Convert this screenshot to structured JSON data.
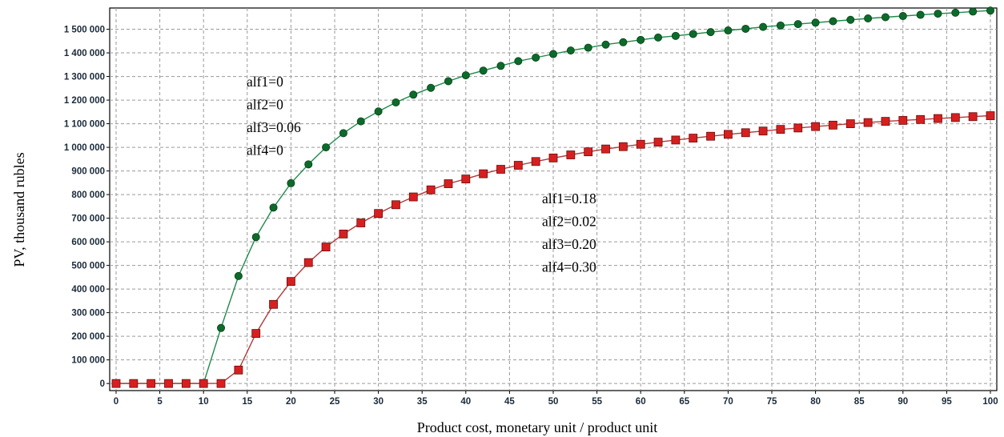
{
  "chart_data": {
    "type": "line",
    "title": "",
    "xlabel": "Product cost, monetary unit / product unit",
    "ylabel": "PV, thousand rubles",
    "xlim": [
      0,
      100
    ],
    "ylim": [
      -30000,
      1590000
    ],
    "grid": true,
    "x_ticks": [
      0,
      5,
      10,
      15,
      20,
      25,
      30,
      35,
      40,
      45,
      50,
      55,
      60,
      65,
      70,
      75,
      80,
      85,
      90,
      95,
      100
    ],
    "x_tick_labels": [
      "0",
      "5",
      "10",
      "15",
      "20",
      "25",
      "30",
      "35",
      "40",
      "45",
      "50",
      "55",
      "60",
      "65",
      "70",
      "75",
      "80",
      "85",
      "90",
      "95",
      "100"
    ],
    "y_ticks": [
      0,
      100000,
      200000,
      300000,
      400000,
      500000,
      600000,
      700000,
      800000,
      900000,
      1000000,
      1100000,
      1200000,
      1300000,
      1400000,
      1500000
    ],
    "y_tick_labels": [
      "0",
      "100 000",
      "200 000",
      "300 000",
      "400 000",
      "500 000",
      "600 000",
      "700 000",
      "800 000",
      "900 000",
      "1 000 000",
      "1 100 000",
      "1 200 000",
      "1 300 000",
      "1 400 000",
      "1 500 000"
    ],
    "x": [
      0,
      2,
      4,
      6,
      8,
      10,
      12,
      14,
      16,
      18,
      20,
      22,
      24,
      26,
      28,
      30,
      32,
      34,
      36,
      38,
      40,
      42,
      44,
      46,
      48,
      50,
      52,
      54,
      56,
      58,
      60,
      62,
      64,
      66,
      68,
      70,
      72,
      74,
      76,
      78,
      80,
      82,
      84,
      86,
      88,
      90,
      92,
      94,
      96,
      98,
      100
    ],
    "series": [
      {
        "name": "",
        "color": "#0d6b2a",
        "line_color": "#1e8a4a",
        "marker": "circle",
        "values": [
          0,
          0,
          0,
          0,
          0,
          0,
          235000,
          455000,
          620000,
          745000,
          848000,
          928000,
          1000000,
          1060000,
          1110000,
          1152000,
          1190000,
          1223000,
          1252000,
          1280000,
          1305000,
          1325000,
          1345000,
          1365000,
          1380000,
          1395000,
          1410000,
          1422000,
          1435000,
          1445000,
          1455000,
          1465000,
          1472000,
          1480000,
          1488000,
          1495000,
          1502000,
          1510000,
          1516000,
          1522000,
          1528000,
          1534000,
          1540000,
          1546000,
          1551000,
          1556000,
          1561000,
          1566000,
          1570000,
          1575000,
          1579000
        ]
      },
      {
        "name": "",
        "color": "#d81f1f",
        "line_color": "#b03a3a",
        "marker": "square",
        "values": [
          0,
          0,
          0,
          0,
          0,
          0,
          0,
          57000,
          212000,
          335000,
          432000,
          512000,
          578000,
          633000,
          680000,
          720000,
          757000,
          790000,
          820000,
          846000,
          866000,
          888000,
          907000,
          924000,
          940000,
          955000,
          968000,
          981000,
          993000,
          1003000,
          1013000,
          1022000,
          1031000,
          1039000,
          1047000,
          1055000,
          1062000,
          1069000,
          1076000,
          1082000,
          1088000,
          1094000,
          1100000,
          1105000,
          1110000,
          1114000,
          1118000,
          1122000,
          1126000,
          1130000,
          1134000
        ]
      }
    ],
    "annotations": [
      {
        "id": "green-params",
        "lines": [
          "alf1=0",
          "alf2=0",
          "alf3=0.06",
          "alf4=0"
        ]
      },
      {
        "id": "red-params",
        "lines": [
          "alf1=0.18",
          "alf2=0.02",
          "alf3=0.20",
          "alf4=0.30"
        ]
      }
    ]
  }
}
